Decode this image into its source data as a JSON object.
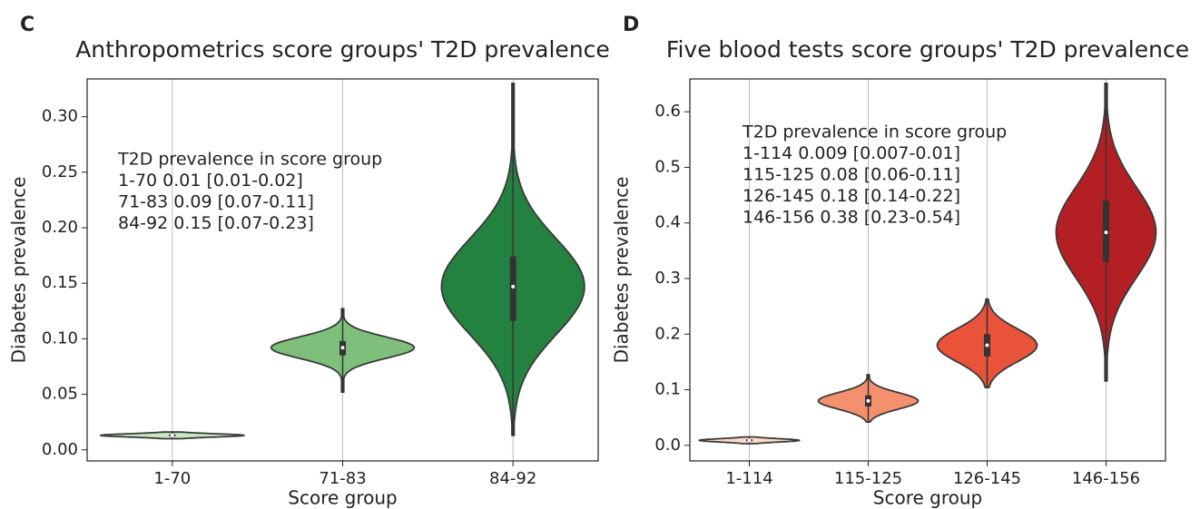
{
  "chart_data": [
    {
      "type": "violin",
      "panel_label": "C",
      "title": "Anthropometrics score groups' T2D prevalence",
      "xlabel": "Score group",
      "ylabel": "Diabetes prevalence",
      "annotation": [
        "T2D prevalence in score group",
        "1-70 0.01 [0.01-0.02]",
        "71-83 0.09 [0.07-0.11]",
        "84-92 0.15 [0.07-0.23]"
      ],
      "categories": [
        "1-70",
        "71-83",
        "84-92"
      ],
      "colors": [
        "#c7e9c0",
        "#7dbf7b",
        "#23823f"
      ],
      "stats": {
        "min": [
          0.01,
          0.052,
          0.013
        ],
        "q1": [
          0.012,
          0.085,
          0.116
        ],
        "median": [
          0.013,
          0.092,
          0.147
        ],
        "q3": [
          0.014,
          0.098,
          0.174
        ],
        "max": [
          0.016,
          0.127,
          0.33
        ]
      },
      "ylim": [
        -0.01,
        0.334
      ],
      "yticks": [
        {
          "value": 0,
          "label": "0.00"
        },
        0.05,
        {
          "value": 0.1,
          "label": "0.10"
        },
        0.15,
        {
          "value": 0.2,
          "label": "0.20"
        },
        0.25,
        {
          "value": 0.3,
          "label": "0.30"
        }
      ],
      "grid": "x"
    },
    {
      "type": "violin",
      "panel_label": "D",
      "title": "Five blood tests score groups' T2D prevalence",
      "xlabel": "Score group",
      "ylabel": "Diabetes prevalence",
      "annotation": [
        "T2D prevalence in score group",
        "1-114 0.009 [0.007-0.01]",
        "115-125 0.08 [0.06-0.11]",
        "126-145 0.18 [0.14-0.22]",
        "146-156 0.38 [0.23-0.54]"
      ],
      "categories": [
        "1-114",
        "115-125",
        "126-145",
        "146-156"
      ],
      "colors": [
        "#fcd9c8",
        "#f4906e",
        "#e8533a",
        "#b41f24"
      ],
      "stats": {
        "min": [
          0.003,
          0.042,
          0.104,
          0.116
        ],
        "q1": [
          0.007,
          0.07,
          0.16,
          0.33
        ],
        "median": [
          0.009,
          0.08,
          0.18,
          0.383
        ],
        "q3": [
          0.011,
          0.09,
          0.2,
          0.44
        ],
        "max": [
          0.015,
          0.127,
          0.263,
          0.651
        ]
      },
      "ylim": [
        -0.028,
        0.659
      ],
      "yticks": [
        {
          "value": 0,
          "label": "0.0"
        },
        0.1,
        0.2,
        0.3,
        0.4,
        0.5,
        0.6
      ],
      "grid": "x"
    }
  ]
}
